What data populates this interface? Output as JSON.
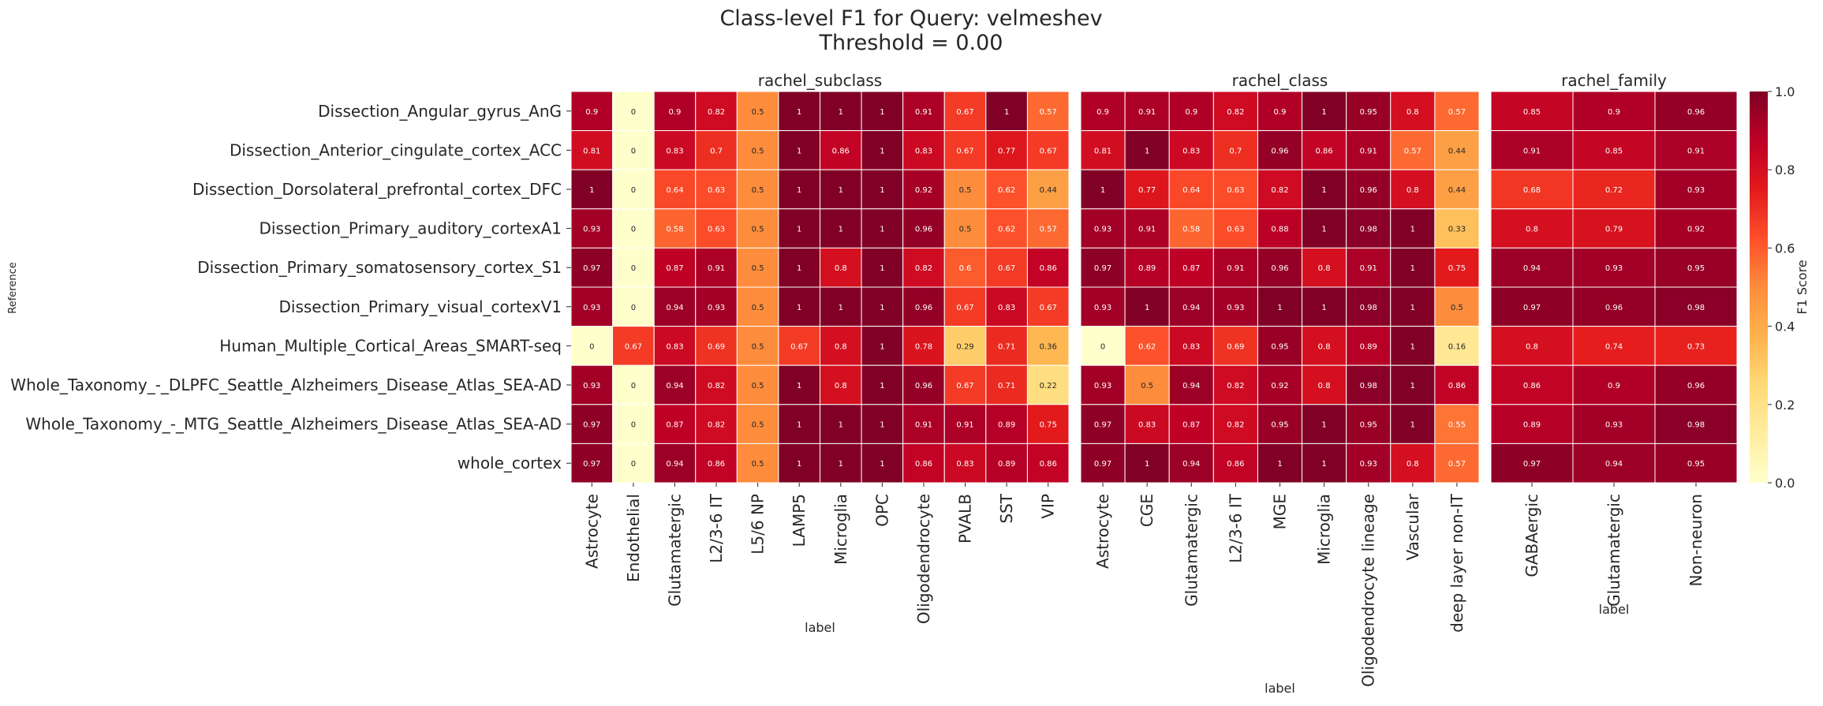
{
  "chart_data": {
    "type": "heatmap",
    "title_line1": "Class-level F1 for Query: velmeshev",
    "title_line2": "Threshold = 0.00",
    "ylabel": "Reference",
    "rows": [
      "Dissection_Angular_gyrus_AnG",
      "Dissection_Anterior_cingulate_cortex_ACC",
      "Dissection_Dorsolateral_prefrontal_cortex_DFC",
      "Dissection_Primary_auditory_cortexA1",
      "Dissection_Primary_somatosensory_cortex_S1",
      "Dissection_Primary_visual_cortexV1",
      "Human_Multiple_Cortical_Areas_SMART-seq",
      "Whole_Taxonomy_-_DLPFC_Seattle_Alzheimers_Disease_Atlas_SEA-AD",
      "Whole_Taxonomy_-_MTG_Seattle_Alzheimers_Disease_Atlas_SEA-AD",
      "whole_cortex"
    ],
    "panels": [
      {
        "title": "rachel_subclass",
        "xlabel": "label",
        "columns": [
          "Astrocyte",
          "Endothelial",
          "Glutamatergic",
          "L2/3-6 IT",
          "L5/6 NP",
          "LAMP5",
          "Microglia",
          "OPC",
          "Oligodendrocyte",
          "PVALB",
          "SST",
          "VIP"
        ],
        "values": [
          [
            0.9,
            0,
            0.9,
            0.82,
            0.5,
            1,
            1,
            1,
            0.91,
            0.67,
            1,
            0.57
          ],
          [
            0.81,
            0,
            0.83,
            0.7,
            0.5,
            1,
            0.86,
            1,
            0.83,
            0.67,
            0.77,
            0.67
          ],
          [
            1,
            0,
            0.64,
            0.63,
            0.5,
            1,
            1,
            1,
            0.92,
            0.5,
            0.62,
            0.44
          ],
          [
            0.93,
            0,
            0.58,
            0.63,
            0.5,
            1,
            1,
            1,
            0.96,
            0.5,
            0.62,
            0.57
          ],
          [
            0.97,
            0,
            0.87,
            0.91,
            0.5,
            1,
            0.8,
            1,
            0.82,
            0.6,
            0.67,
            0.86
          ],
          [
            0.93,
            0,
            0.94,
            0.93,
            0.5,
            1,
            1,
            1,
            0.96,
            0.67,
            0.83,
            0.67
          ],
          [
            0,
            0.67,
            0.83,
            0.69,
            0.5,
            0.67,
            0.8,
            1,
            0.78,
            0.29,
            0.71,
            0.36
          ],
          [
            0.93,
            0,
            0.94,
            0.82,
            0.5,
            1,
            0.8,
            1,
            0.96,
            0.67,
            0.71,
            0.22
          ],
          [
            0.97,
            0,
            0.87,
            0.82,
            0.5,
            1,
            1,
            1,
            0.91,
            0.91,
            0.89,
            0.75
          ],
          [
            0.97,
            0,
            0.94,
            0.86,
            0.5,
            1,
            1,
            1,
            0.86,
            0.83,
            0.89,
            0.86
          ]
        ]
      },
      {
        "title": "rachel_class",
        "xlabel": "label",
        "columns": [
          "Astrocyte",
          "CGE",
          "Glutamatergic",
          "L2/3-6 IT",
          "MGE",
          "Microglia",
          "Oligodendrocyte lineage",
          "Vascular",
          "deep layer non-IT"
        ],
        "values": [
          [
            0.9,
            0.91,
            0.9,
            0.82,
            0.9,
            1,
            0.95,
            0.8,
            0.57
          ],
          [
            0.81,
            1,
            0.83,
            0.7,
            0.96,
            0.86,
            0.91,
            0.57,
            0.44
          ],
          [
            1,
            0.77,
            0.64,
            0.63,
            0.82,
            1,
            0.96,
            0.8,
            0.44
          ],
          [
            0.93,
            0.91,
            0.58,
            0.63,
            0.88,
            1,
            0.98,
            1,
            0.33
          ],
          [
            0.97,
            0.89,
            0.87,
            0.91,
            0.96,
            0.8,
            0.91,
            1,
            0.75
          ],
          [
            0.93,
            1,
            0.94,
            0.93,
            1,
            1,
            0.98,
            1,
            0.5
          ],
          [
            0,
            0.62,
            0.83,
            0.69,
            0.95,
            0.8,
            0.89,
            1,
            0.16
          ],
          [
            0.93,
            0.5,
            0.94,
            0.82,
            0.92,
            0.8,
            0.98,
            1,
            0.86
          ],
          [
            0.97,
            0.83,
            0.87,
            0.82,
            0.95,
            1,
            0.95,
            1,
            0.55
          ],
          [
            0.97,
            1,
            0.94,
            0.86,
            1,
            1,
            0.93,
            0.8,
            0.57
          ]
        ]
      },
      {
        "title": "rachel_family",
        "xlabel": "label",
        "columns": [
          "GABAergic",
          "Glutamatergic",
          "Non-neuron"
        ],
        "values": [
          [
            0.85,
            0.9,
            0.96
          ],
          [
            0.91,
            0.85,
            0.91
          ],
          [
            0.68,
            0.72,
            0.93
          ],
          [
            0.8,
            0.79,
            0.92
          ],
          [
            0.94,
            0.93,
            0.95
          ],
          [
            0.97,
            0.96,
            0.98
          ],
          [
            0.8,
            0.74,
            0.73
          ],
          [
            0.86,
            0.9,
            0.96
          ],
          [
            0.89,
            0.93,
            0.98
          ],
          [
            0.97,
            0.94,
            0.95
          ]
        ]
      }
    ],
    "colorbar": {
      "label": "F1 Score",
      "range": [
        0,
        1
      ],
      "ticks": [
        "0.0",
        "0.2",
        "0.4",
        "0.6",
        "0.8",
        "1.0"
      ],
      "colormap": "YlOrRd",
      "colors": [
        "#ffffcc",
        "#ffeda0",
        "#fed976",
        "#feb24c",
        "#fd8d3c",
        "#fc4e2a",
        "#e31a1c",
        "#bd0026",
        "#800026"
      ]
    }
  }
}
